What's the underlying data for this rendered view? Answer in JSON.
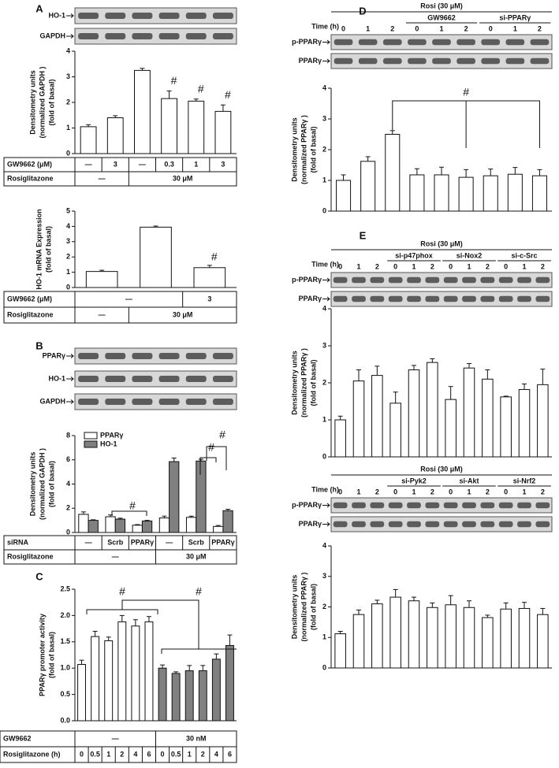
{
  "chart_data": [
    {
      "type": "bar",
      "panel": "A",
      "blots": [
        "HO-1",
        "GAPDH"
      ],
      "ylabel": [
        "Densitometry units",
        "(normalized GAPDH )",
        "(fold of basal)"
      ],
      "ylim": [
        0,
        4
      ],
      "yticks": [
        0,
        1,
        2,
        3,
        4
      ],
      "color": "#ffffff",
      "values": [
        1.05,
        1.4,
        3.25,
        2.15,
        2.05,
        1.65
      ],
      "errors": [
        0.08,
        0.08,
        0.08,
        0.3,
        0.08,
        0.25
      ],
      "annotations": [
        "#",
        "#",
        "#"
      ],
      "table": [
        [
          "GW9662 (μM)",
          "—",
          "3",
          "—",
          "0.3",
          "1",
          "3"
        ],
        [
          "Rosiglitazone",
          "—",
          null,
          "30 μM",
          null,
          null,
          null
        ]
      ]
    },
    {
      "type": "bar",
      "ylabel": [
        "HO-1 mRNA Expression",
        "(fold of basal)"
      ],
      "ylim": [
        0,
        5
      ],
      "yticks": [
        0,
        1,
        2,
        3,
        4,
        5
      ],
      "color": "#ffffff",
      "values": [
        1.05,
        3.95,
        1.3
      ],
      "errors": [
        0.08,
        0.07,
        0.15
      ],
      "annotations": [
        "#"
      ],
      "table": [
        [
          "GW9662 (μM)",
          "—",
          null,
          "3"
        ],
        [
          "Rosiglitazone",
          "—",
          "30 μM",
          null
        ]
      ]
    },
    {
      "type": "grouped-bar",
      "panel": "B",
      "blots": [
        "PPARγ",
        "HO-1",
        "GAPDH"
      ],
      "ylabel": [
        "Densitometry units",
        "(normalized GAPDH )",
        "(fold of basal)"
      ],
      "ylim": [
        0,
        8
      ],
      "yticks": [
        0,
        2,
        4,
        6,
        8
      ],
      "legend": "upper left",
      "series": [
        {
          "name": "PPARγ",
          "color": "#ffffff",
          "values": [
            1.5,
            1.3,
            0.6,
            1.2,
            1.25,
            0.5
          ],
          "errors": [
            0.2,
            0.15,
            0.05,
            0.15,
            0.1,
            0.08
          ]
        },
        {
          "name": "HO-1",
          "color": "#808080",
          "values": [
            1.0,
            1.1,
            0.95,
            5.85,
            5.9,
            1.8
          ],
          "errors": [
            0.05,
            0.08,
            0.05,
            0.3,
            0.15,
            0.12
          ]
        }
      ],
      "annotations": [
        "#",
        "#",
        "#"
      ],
      "table": [
        [
          "siRNA",
          "—",
          "Scrb",
          "PPARγ",
          "—",
          "Scrb",
          "PPARγ"
        ],
        [
          "Rosiglitazone",
          "—",
          null,
          null,
          "30 μM",
          null,
          null
        ]
      ]
    },
    {
      "type": "bar",
      "panel": "C",
      "ylabel": [
        "PPARγ promoter activity",
        "(fold of basal)"
      ],
      "ylim": [
        0,
        2.5
      ],
      "yticks": [
        {
          "value": 0,
          "label": "0.0"
        },
        {
          "value": 0.5,
          "label": "0.5"
        },
        {
          "value": 1,
          "label": "1.0"
        },
        {
          "value": 1.5,
          "label": "1.5"
        },
        {
          "value": 2,
          "label": "2.0"
        },
        {
          "value": 2.5,
          "label": "2.5"
        }
      ],
      "colors": [
        "#ffffff",
        "#ffffff",
        "#ffffff",
        "#ffffff",
        "#ffffff",
        "#ffffff",
        "#808080",
        "#808080",
        "#808080",
        "#808080",
        "#808080",
        "#808080"
      ],
      "values": [
        1.07,
        1.6,
        1.52,
        1.88,
        1.8,
        1.88,
        1.0,
        0.9,
        0.95,
        0.95,
        1.17,
        1.43
      ],
      "errors": [
        0.08,
        0.1,
        0.07,
        0.12,
        0.12,
        0.1,
        0.06,
        0.03,
        0.1,
        0.1,
        0.1,
        0.2
      ],
      "annotations": [
        "#",
        "#"
      ],
      "table": [
        [
          "GW9662",
          "—",
          null,
          null,
          null,
          null,
          null,
          "30 nM",
          null,
          null,
          null,
          null,
          null
        ],
        [
          "Rosiglitazone (h)",
          "0",
          "0.5",
          "1",
          "2",
          "4",
          "6",
          "0",
          "0.5",
          "1",
          "2",
          "4",
          "6"
        ]
      ]
    },
    {
      "type": "bar",
      "panel": "D",
      "header": {
        "title": "Rosi (30 μM)",
        "time_label": "Time (h)",
        "groups": [
          "GW9662",
          "si-PPARγ"
        ],
        "lanes": [
          "0",
          "1",
          "2",
          "0",
          "1",
          "2",
          "0",
          "1",
          "2"
        ]
      },
      "blots": [
        "p-PPARγ",
        "PPARγ"
      ],
      "ylabel": [
        "Densitometry units",
        "(normalized PPARγ )",
        "(fold of basal)"
      ],
      "ylim": [
        0,
        4
      ],
      "yticks": [
        0,
        1,
        2,
        3,
        4
      ],
      "color": "#ffffff",
      "values": [
        1.0,
        1.62,
        2.5,
        1.18,
        1.18,
        1.1,
        1.15,
        1.2,
        1.15
      ],
      "errors": [
        0.18,
        0.15,
        0.12,
        0.2,
        0.25,
        0.25,
        0.22,
        0.22,
        0.2
      ],
      "annotations": [
        "#"
      ]
    },
    {
      "type": "bar",
      "panel": "E",
      "header": {
        "title": "Rosi (30 μM)",
        "time_label": "Time (h)",
        "groups": [
          "si-p47phox",
          "si-Nox2",
          "si-c-Src"
        ],
        "lanes": [
          "0",
          "1",
          "2",
          "0",
          "1",
          "2",
          "0",
          "1",
          "2",
          "0",
          "1",
          "2"
        ]
      },
      "blots": [
        "p-PPARγ",
        "PPARγ"
      ],
      "ylabel": [
        "Densitometry units",
        "(normalized PPARγ )",
        "(fold of basal)"
      ],
      "ylim": [
        0,
        4
      ],
      "yticks": [
        0,
        1,
        2,
        3,
        4
      ],
      "color": "#ffffff",
      "values": [
        1.0,
        2.05,
        2.2,
        1.45,
        2.35,
        2.55,
        1.55,
        2.4,
        2.1,
        1.62,
        1.82,
        1.95
      ],
      "errors": [
        0.1,
        0.3,
        0.25,
        0.3,
        0.12,
        0.1,
        0.35,
        0.12,
        0.25,
        0.02,
        0.15,
        0.42
      ]
    },
    {
      "type": "bar",
      "header": {
        "title": "Rosi (30 μM)",
        "time_label": "Time (h)",
        "groups": [
          "si-Pyk2",
          "si-Akt",
          "si-Nrf2"
        ],
        "lanes": [
          "0",
          "1",
          "2",
          "0",
          "1",
          "2",
          "0",
          "1",
          "2",
          "0",
          "1",
          "2"
        ]
      },
      "blots": [
        "p-PPARγ",
        "PPARγ"
      ],
      "ylabel": [
        "Densitometry units",
        "(normalized PPARγ )",
        "(fold of basal)"
      ],
      "ylim": [
        0,
        4
      ],
      "yticks": [
        0,
        1,
        2,
        3,
        4
      ],
      "color": "#ffffff",
      "values": [
        1.12,
        1.75,
        2.1,
        2.32,
        2.2,
        1.98,
        2.07,
        1.98,
        1.65,
        1.93,
        1.95,
        1.75
      ],
      "errors": [
        0.08,
        0.15,
        0.12,
        0.25,
        0.12,
        0.15,
        0.3,
        0.22,
        0.08,
        0.2,
        0.2,
        0.2
      ]
    }
  ]
}
